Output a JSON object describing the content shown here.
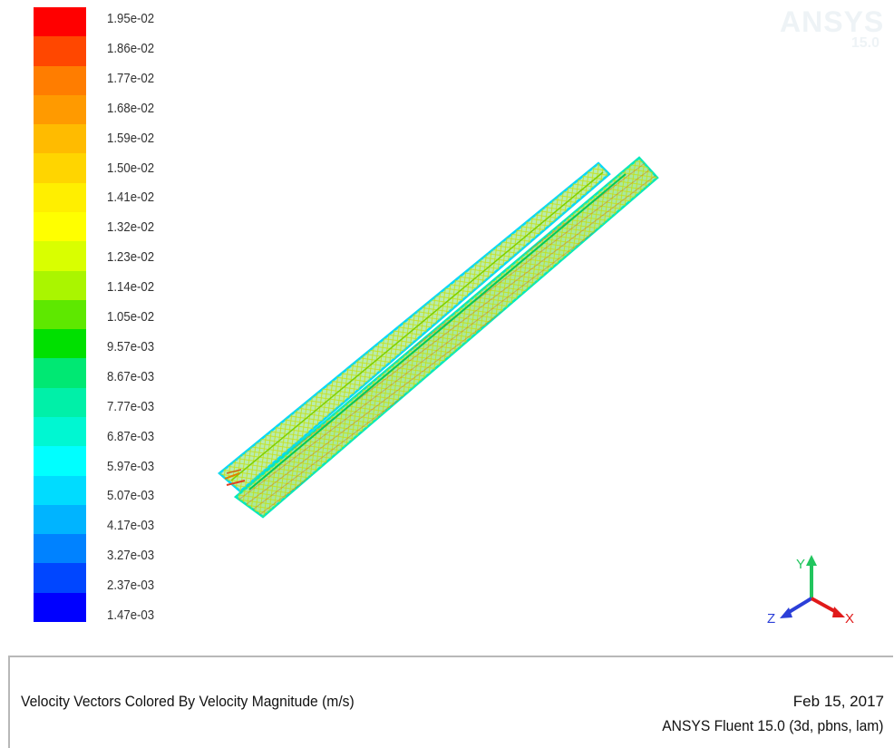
{
  "legend": {
    "labels": [
      "1.95e-02",
      "1.86e-02",
      "1.77e-02",
      "1.68e-02",
      "1.59e-02",
      "1.50e-02",
      "1.41e-02",
      "1.32e-02",
      "1.23e-02",
      "1.14e-02",
      "1.05e-02",
      "9.57e-03",
      "8.67e-03",
      "7.77e-03",
      "6.87e-03",
      "5.97e-03",
      "5.07e-03",
      "4.17e-03",
      "3.27e-03",
      "2.37e-03",
      "1.47e-03"
    ],
    "colors": [
      "#ff0000",
      "#ff4700",
      "#ff7d00",
      "#ff9a00",
      "#ffbb00",
      "#ffd500",
      "#ffef00",
      "#ffff00",
      "#d9ff00",
      "#aaf500",
      "#5ee800",
      "#00e000",
      "#00e873",
      "#00f0a8",
      "#00f7d2",
      "#00ffff",
      "#00dcff",
      "#00b4ff",
      "#0082ff",
      "#0046ff",
      "#0000ff"
    ]
  },
  "watermark": {
    "brand": "ANSYS",
    "version": "15.0"
  },
  "axes": {
    "y": "Y",
    "z": "Z",
    "x": "X",
    "y_color": "#22c55e",
    "z_color": "#2b3fd8",
    "x_color": "#e01a1a"
  },
  "caption": {
    "title": "Velocity Vectors Colored By Velocity Magnitude (m/s)",
    "date": "Feb 15, 2017",
    "solver": "ANSYS Fluent 15.0 (3d, pbns, lam)"
  }
}
